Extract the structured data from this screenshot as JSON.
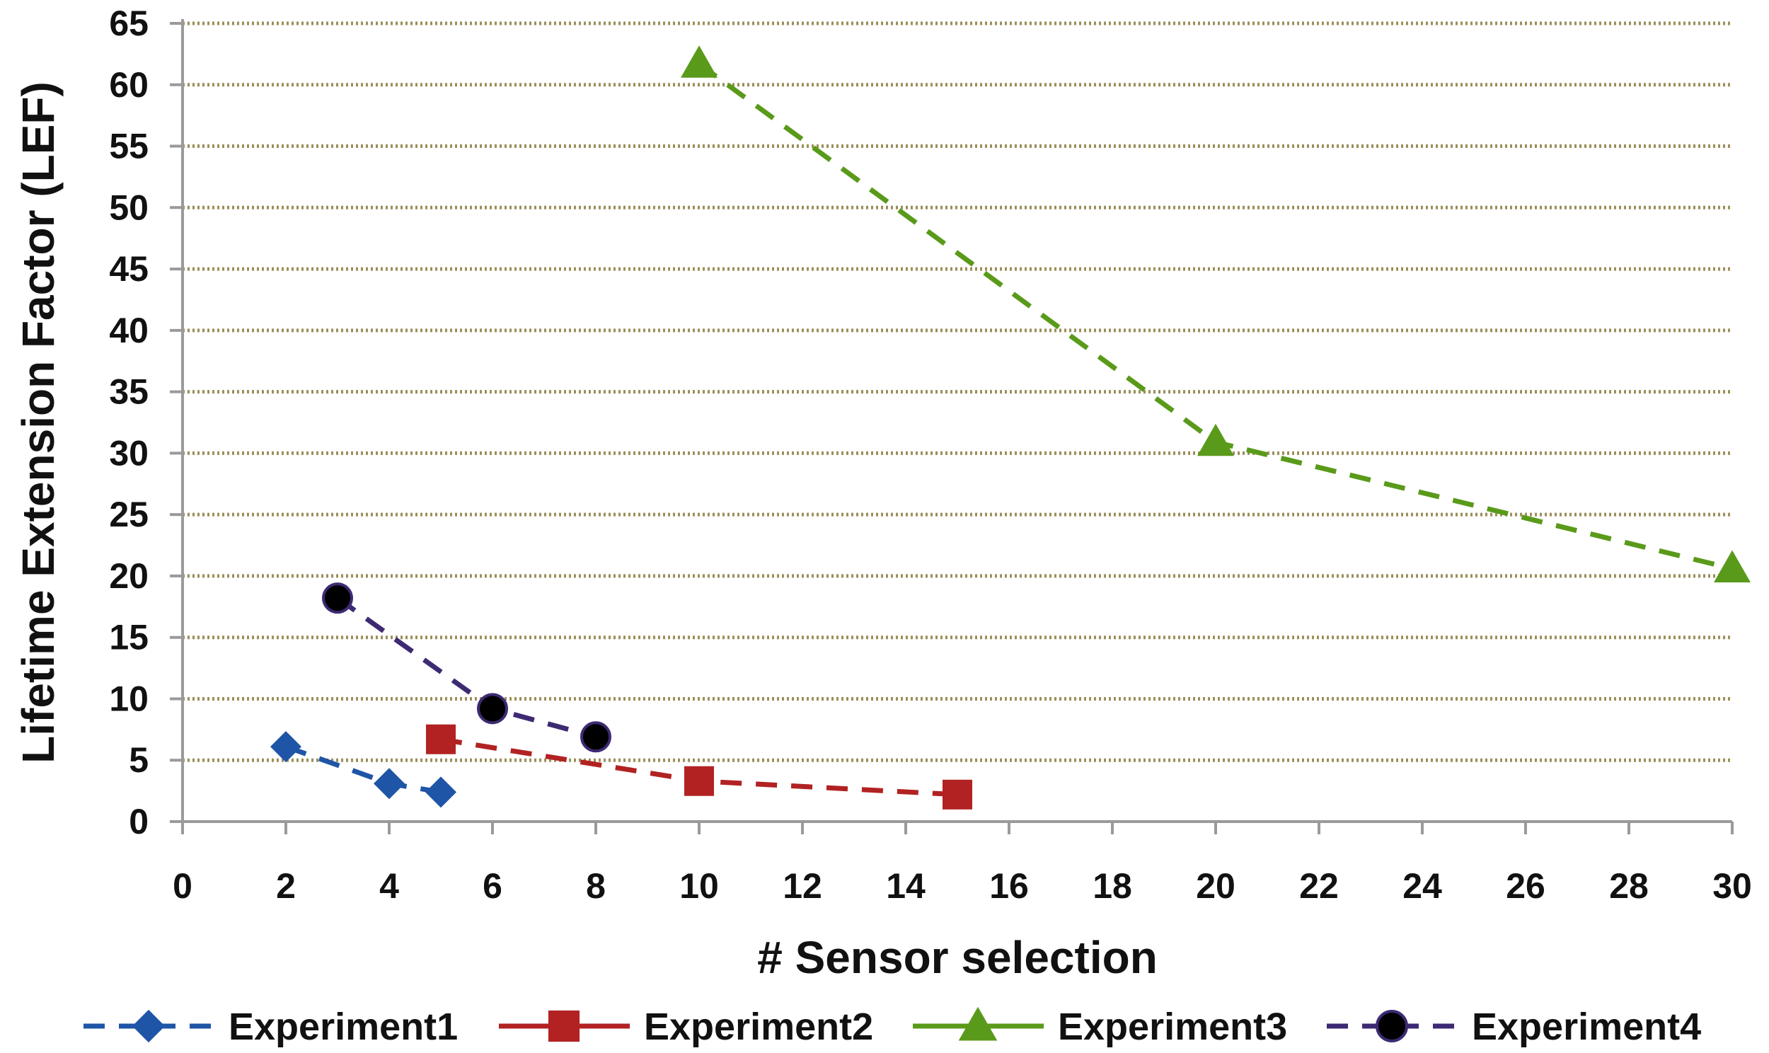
{
  "chart_data": {
    "type": "line",
    "title": "",
    "xlabel": "# Sensor selection",
    "ylabel": "Lifetime Extension Factor (LEF)",
    "xlim": [
      0,
      30
    ],
    "ylim": [
      0,
      65
    ],
    "xticks": [
      0,
      2,
      4,
      6,
      8,
      10,
      12,
      14,
      16,
      18,
      20,
      22,
      24,
      26,
      28,
      30
    ],
    "yticks": [
      0,
      5,
      10,
      15,
      20,
      25,
      30,
      35,
      40,
      45,
      50,
      55,
      60,
      65
    ],
    "grid": "horizontal dotted",
    "legend_position": "bottom",
    "series": [
      {
        "name": "Experiment1",
        "color": "#1f55a6",
        "marker": "diamond",
        "x": [
          2,
          4,
          5
        ],
        "y": [
          6.1,
          3.1,
          2.4
        ]
      },
      {
        "name": "Experiment2",
        "color": "#b22222",
        "marker": "square",
        "x": [
          5,
          10,
          15
        ],
        "y": [
          6.7,
          3.3,
          2.2
        ]
      },
      {
        "name": "Experiment3",
        "color": "#5a9a1a",
        "marker": "triangle",
        "x": [
          10,
          20,
          30
        ],
        "y": [
          61.7,
          30.9,
          20.6
        ]
      },
      {
        "name": "Experiment4",
        "color": "#3d2a73",
        "marker": "circle",
        "x": [
          3,
          6,
          8
        ],
        "y": [
          18.2,
          9.2,
          6.9
        ]
      }
    ]
  }
}
